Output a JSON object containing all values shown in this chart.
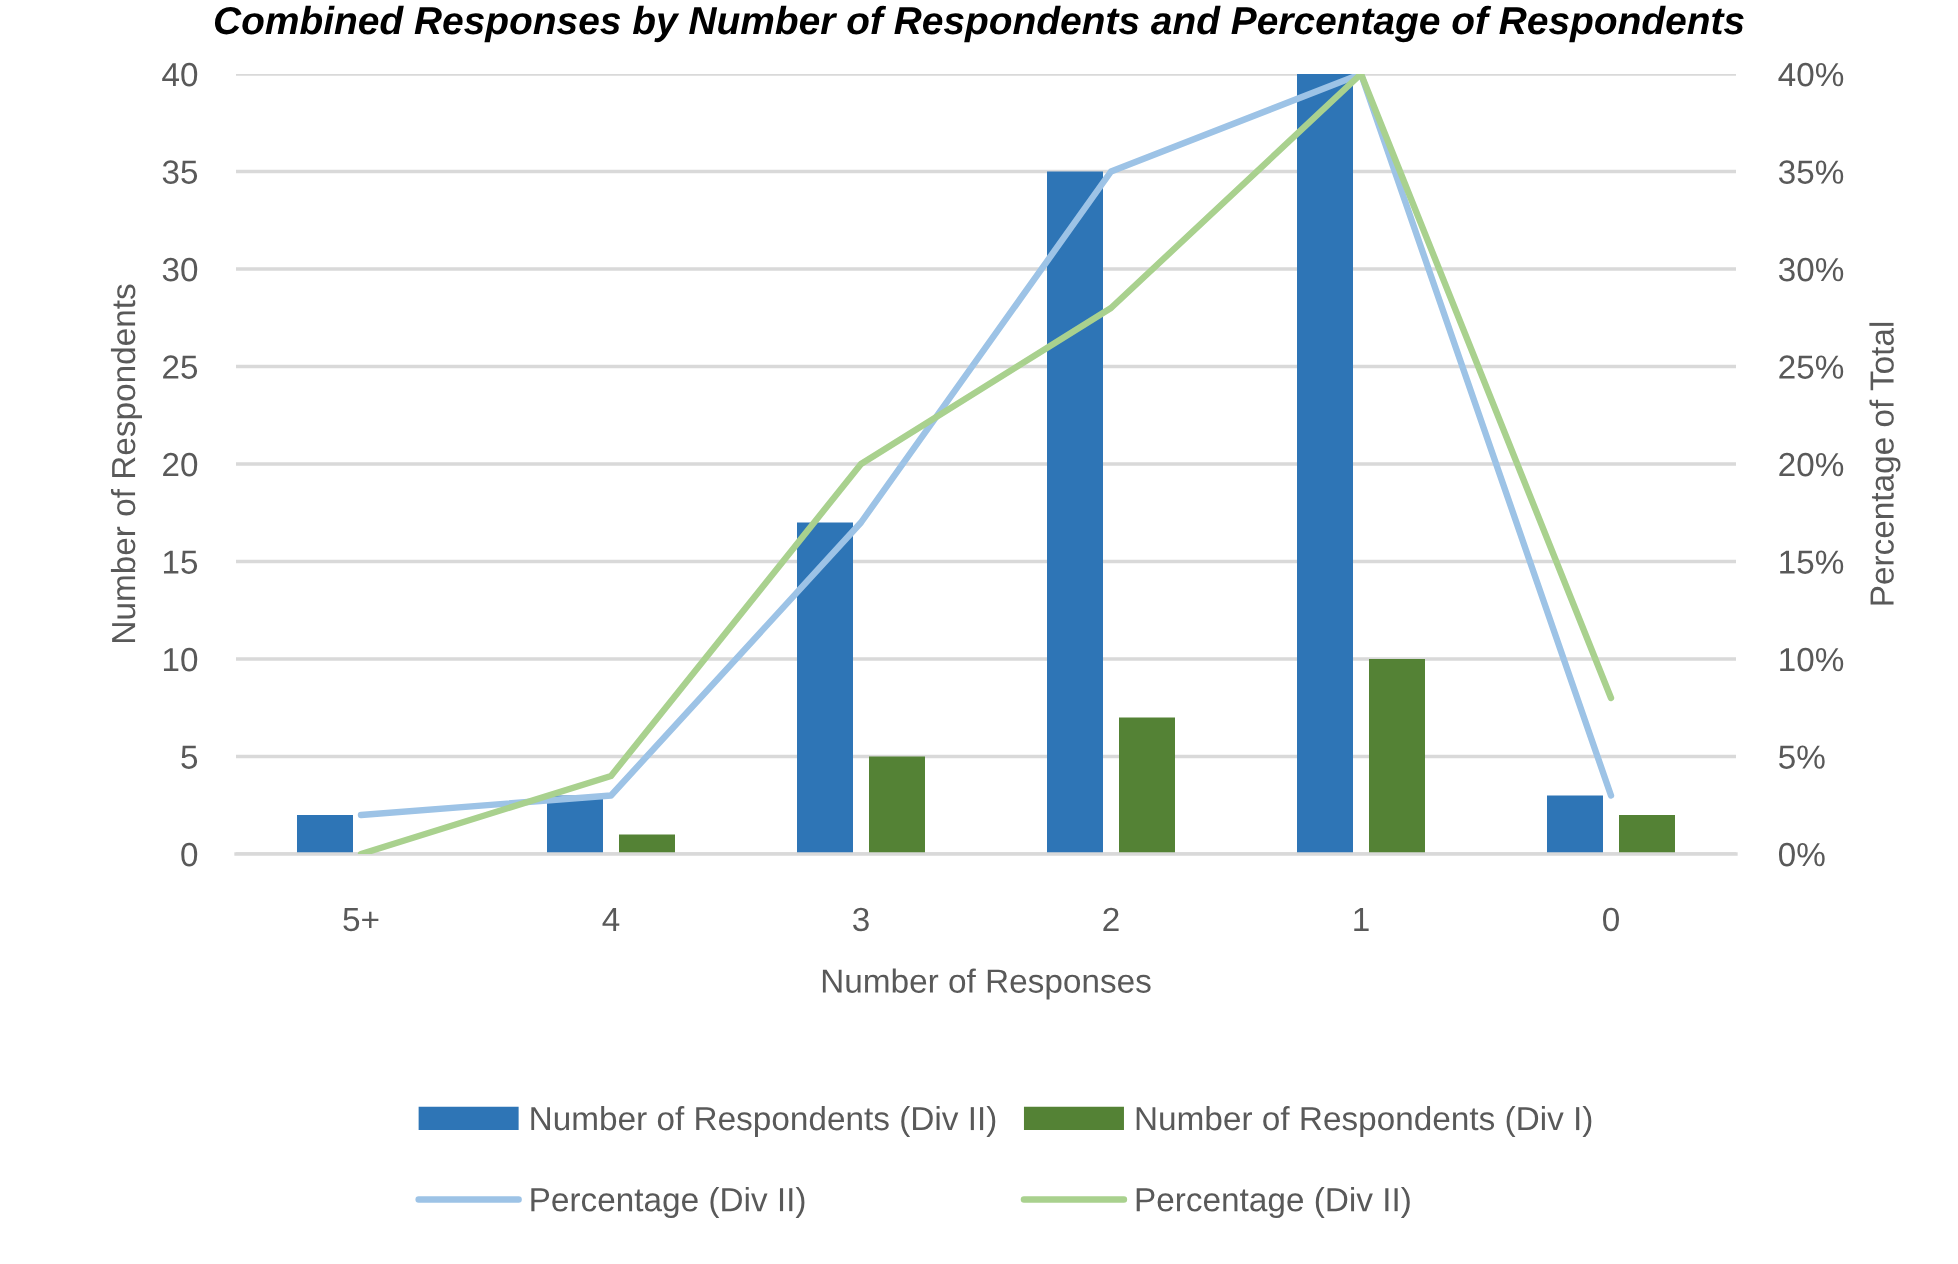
{
  "chart_data": {
    "type": "bar",
    "title": "Combined Responses by Number of Respondents and Percentage of Respondents",
    "xlabel": "Number of Responses",
    "ylabel": "Number of Respondents",
    "y2label": "Percentage of Total",
    "categories": [
      "5+",
      "4",
      "3",
      "2",
      "1",
      "0"
    ],
    "series": [
      {
        "name": "Number of Respondents (Div II)",
        "color": "#2e75b6",
        "values": [
          2,
          3,
          17,
          35,
          40,
          3
        ]
      },
      {
        "name": "Number of Respondents (Div I)",
        "color": "#548235",
        "values": [
          0,
          1,
          5,
          7,
          10,
          2
        ]
      },
      {
        "name": "Percentage (Div II)",
        "type": "line",
        "axis": "y2",
        "color": "#9dc3e6",
        "values": [
          2,
          3,
          17,
          35,
          40,
          3
        ]
      },
      {
        "name": "Percentage (Div II)",
        "type": "line",
        "axis": "y2",
        "color": "#a9d18e",
        "values": [
          0,
          4,
          20,
          28,
          40,
          8
        ]
      }
    ],
    "ylim": [
      0,
      40
    ],
    "yticks": [
      0,
      5,
      10,
      15,
      20,
      25,
      30,
      35,
      40
    ],
    "y2lim": [
      0,
      40
    ],
    "y2ticks": [
      {
        "value": 0,
        "label": "0%"
      },
      {
        "value": 5,
        "label": "5%"
      },
      {
        "value": 10,
        "label": "10%"
      },
      {
        "value": 15,
        "label": "15%"
      },
      {
        "value": 20,
        "label": "20%"
      },
      {
        "value": 25,
        "label": "25%"
      },
      {
        "value": 30,
        "label": "30%"
      },
      {
        "value": 35,
        "label": "35%"
      },
      {
        "value": 40,
        "label": "40%"
      }
    ],
    "grid": "y",
    "legend": "bottom",
    "line_style": "solid"
  }
}
